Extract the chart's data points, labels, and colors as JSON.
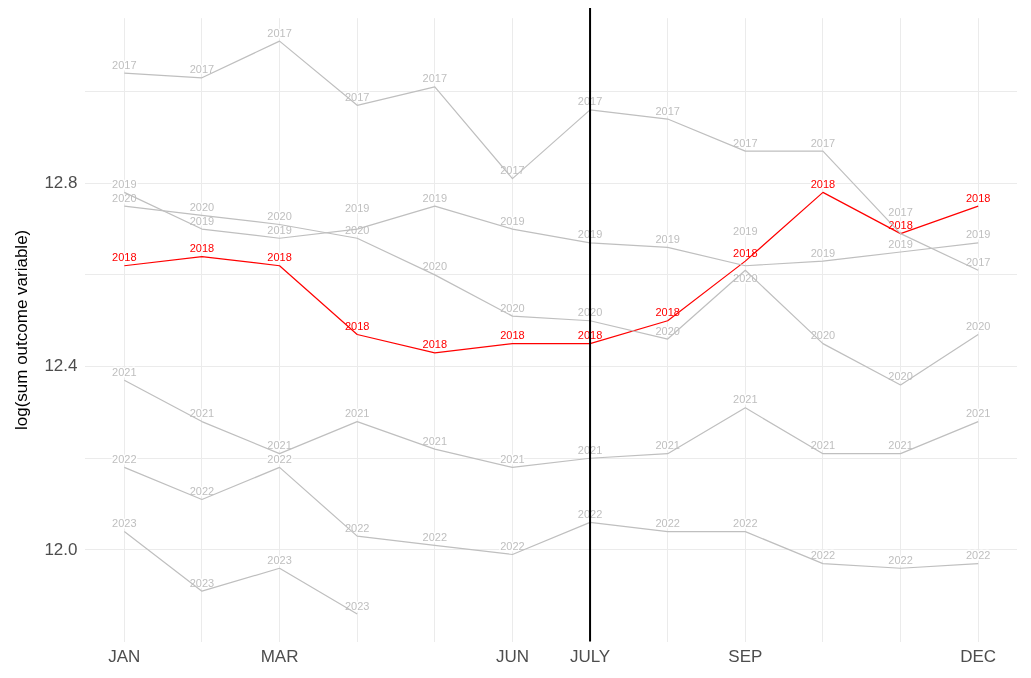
{
  "chart_data": {
    "type": "line",
    "ylabel": "log(sum outcome variable)",
    "categories": [
      "JAN",
      null,
      "MAR",
      null,
      null,
      "JUN",
      "JULY",
      null,
      "SEP",
      null,
      null,
      "DEC"
    ],
    "series": [
      {
        "name": "2017",
        "color": "#bfbfbf",
        "values": [
          13.04,
          13.03,
          13.11,
          12.97,
          13.01,
          12.81,
          12.96,
          12.94,
          12.87,
          12.87,
          12.69,
          12.61
        ]
      },
      {
        "name": "2019",
        "color": "#bfbfbf",
        "values": [
          12.78,
          12.7,
          12.68,
          12.7,
          12.75,
          12.7,
          12.67,
          12.66,
          12.62,
          12.63,
          12.65,
          12.67
        ]
      },
      {
        "name": "2020",
        "color": "#bfbfbf",
        "values": [
          12.75,
          12.73,
          12.71,
          12.68,
          12.6,
          12.51,
          12.5,
          12.46,
          12.61,
          12.45,
          12.36,
          12.47
        ]
      },
      {
        "name": "2021",
        "color": "#bfbfbf",
        "values": [
          12.37,
          12.28,
          12.21,
          12.28,
          12.22,
          12.18,
          12.2,
          12.21,
          12.31,
          12.21,
          12.21,
          12.28
        ]
      },
      {
        "name": "2022",
        "color": "#bfbfbf",
        "values": [
          12.18,
          12.11,
          12.18,
          12.03,
          12.01,
          11.99,
          12.06,
          12.04,
          12.04,
          11.97,
          11.96,
          11.97
        ]
      },
      {
        "name": "2023",
        "color": "#bfbfbf",
        "values": [
          12.04,
          11.91,
          11.96,
          11.86,
          null,
          null,
          null,
          null,
          null,
          null,
          null,
          null
        ]
      },
      {
        "name": "2018",
        "color": "#ff0000",
        "values": [
          12.62,
          12.64,
          12.62,
          12.47,
          12.43,
          12.45,
          12.45,
          12.5,
          12.63,
          12.78,
          12.69,
          12.75
        ]
      }
    ],
    "ylim": [
      11.8,
      13.16
    ],
    "yticks": [
      {
        "value": 12.0,
        "label": "12.0"
      },
      {
        "value": 12.2,
        "label": null
      },
      12.4,
      {
        "value": 12.6,
        "label": null
      },
      12.8,
      {
        "value": 13.0,
        "label": null
      }
    ],
    "ref_lines": [
      {
        "axis": "x",
        "value": "JULY",
        "color": "#000000"
      }
    ],
    "grid": true,
    "legend": false,
    "marker": "none",
    "line_style": "solid"
  }
}
